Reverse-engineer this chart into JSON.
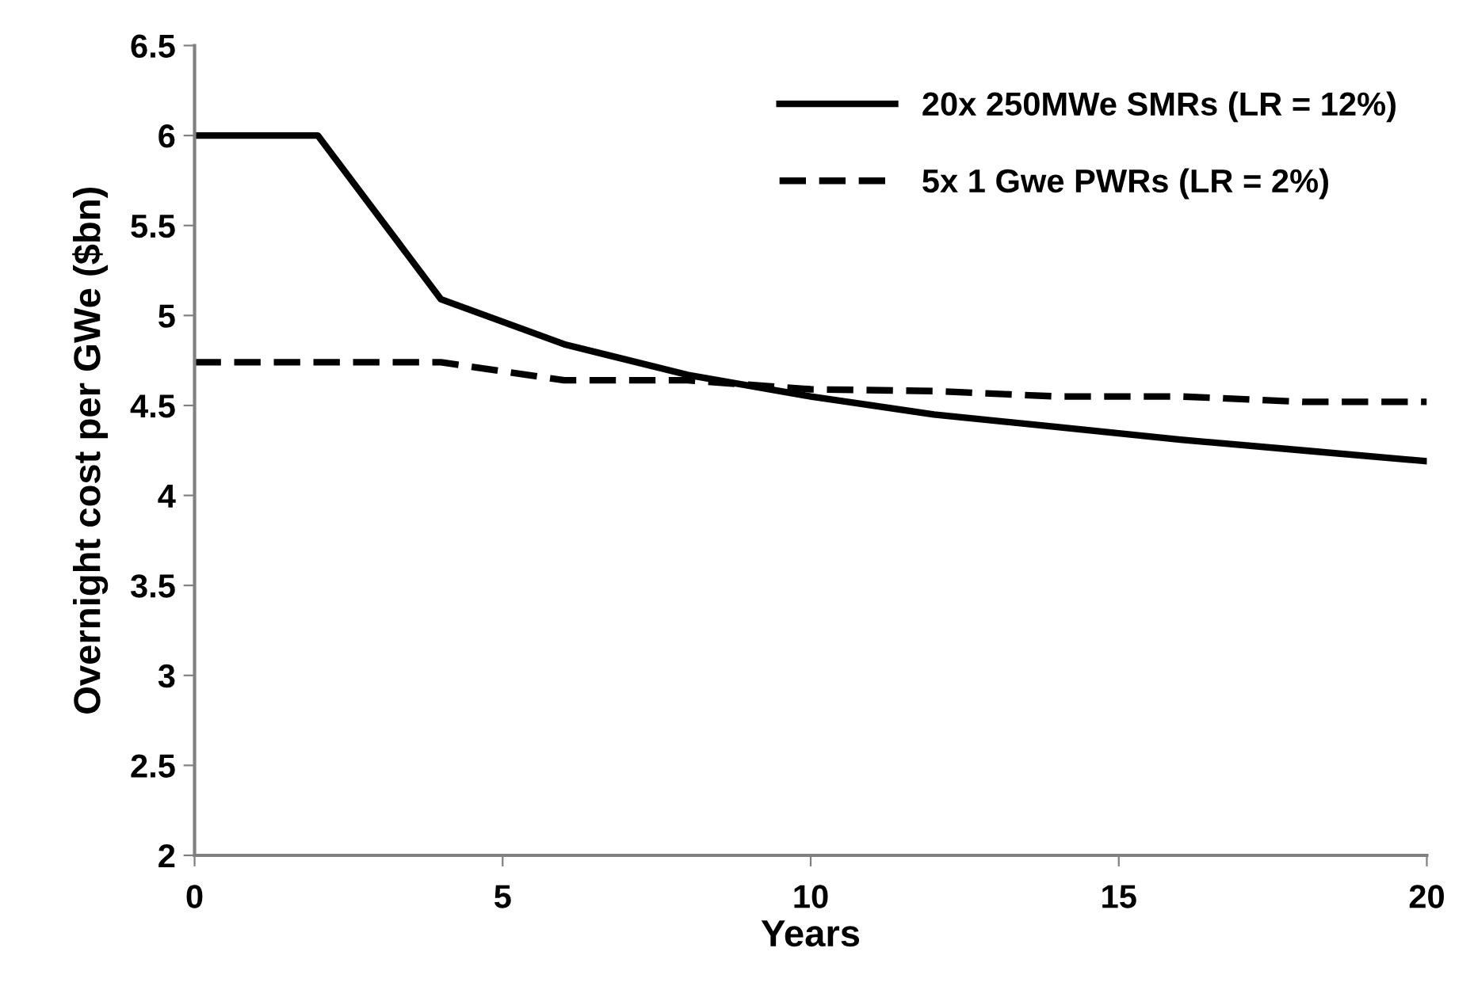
{
  "chart_data": {
    "type": "line",
    "xlabel": "Years",
    "ylabel": "Overnight cost per GWe ($bn)",
    "xlim": [
      0,
      20
    ],
    "xticks": [
      0,
      5,
      10,
      15,
      20
    ],
    "ylim": [
      2,
      6.5
    ],
    "yticks": [
      2,
      2.5,
      3,
      3.5,
      4,
      4.5,
      5,
      5.5,
      6,
      6.5
    ],
    "grid": false,
    "legend": "top right",
    "marker": "none",
    "series": [
      {
        "name": "20x 250MWe SMRs (LR = 12%)",
        "color": "#000000",
        "line_style": "solid",
        "x": [
          0,
          2,
          4,
          6,
          8,
          10,
          12,
          14,
          16,
          18,
          20
        ],
        "values": [
          6,
          6,
          5.09,
          4.84,
          4.67,
          4.55,
          4.45,
          4.38,
          4.31,
          4.25,
          4.19
        ]
      },
      {
        "name": "5x 1 Gwe PWRs (LR = 2%)",
        "color": "#000000",
        "line_style": "dashed",
        "x": [
          0,
          2,
          4,
          6,
          8,
          10,
          12,
          14,
          16,
          18,
          20
        ],
        "values": [
          4.74,
          4.74,
          4.74,
          4.64,
          4.64,
          4.59,
          4.58,
          4.55,
          4.55,
          4.52,
          4.52
        ]
      }
    ]
  }
}
